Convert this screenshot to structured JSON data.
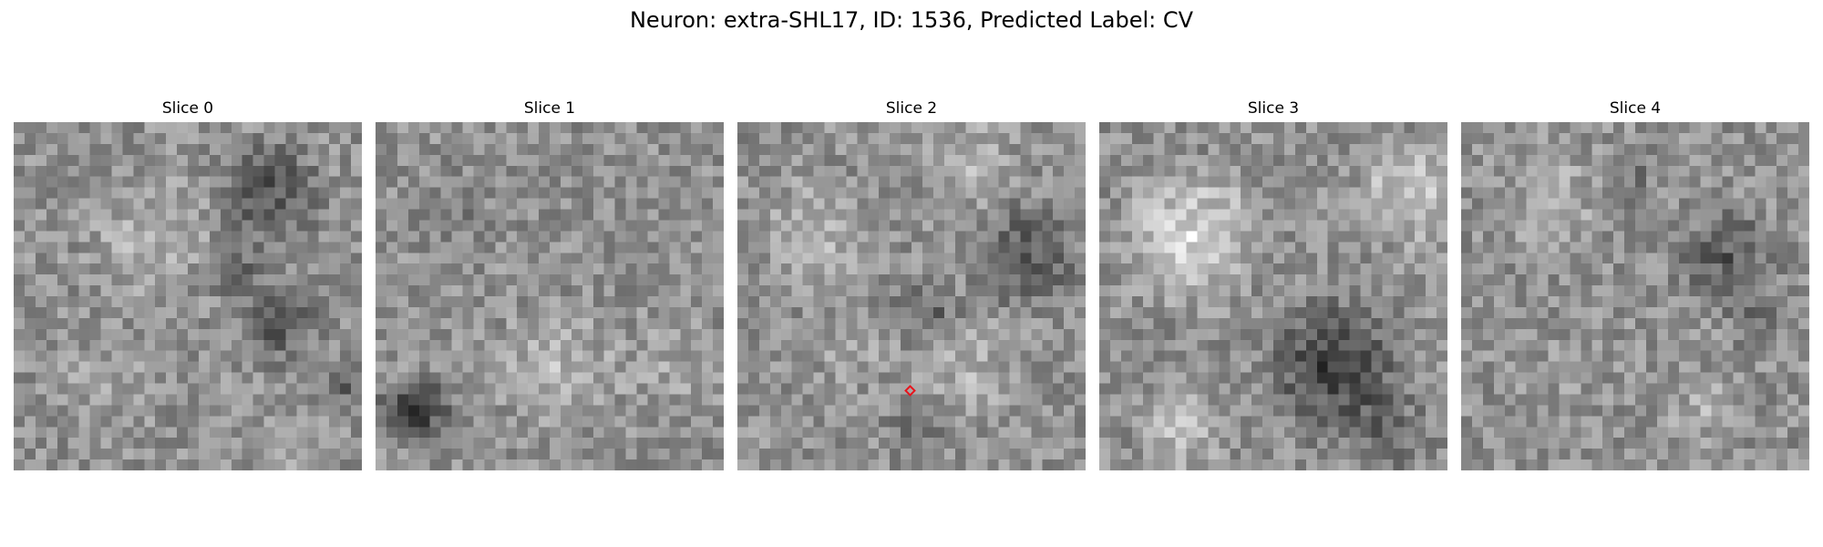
{
  "figure": {
    "title": "Neuron: extra-SHL17, ID: 1536, Predicted Label: CV"
  },
  "slices": [
    {
      "title": "Slice 0"
    },
    {
      "title": "Slice 1"
    },
    {
      "title": "Slice 2",
      "marker": {
        "shape": "diamond",
        "color": "#e8141c"
      }
    },
    {
      "title": "Slice 3"
    },
    {
      "title": "Slice 4"
    }
  ],
  "colormap": "gray"
}
